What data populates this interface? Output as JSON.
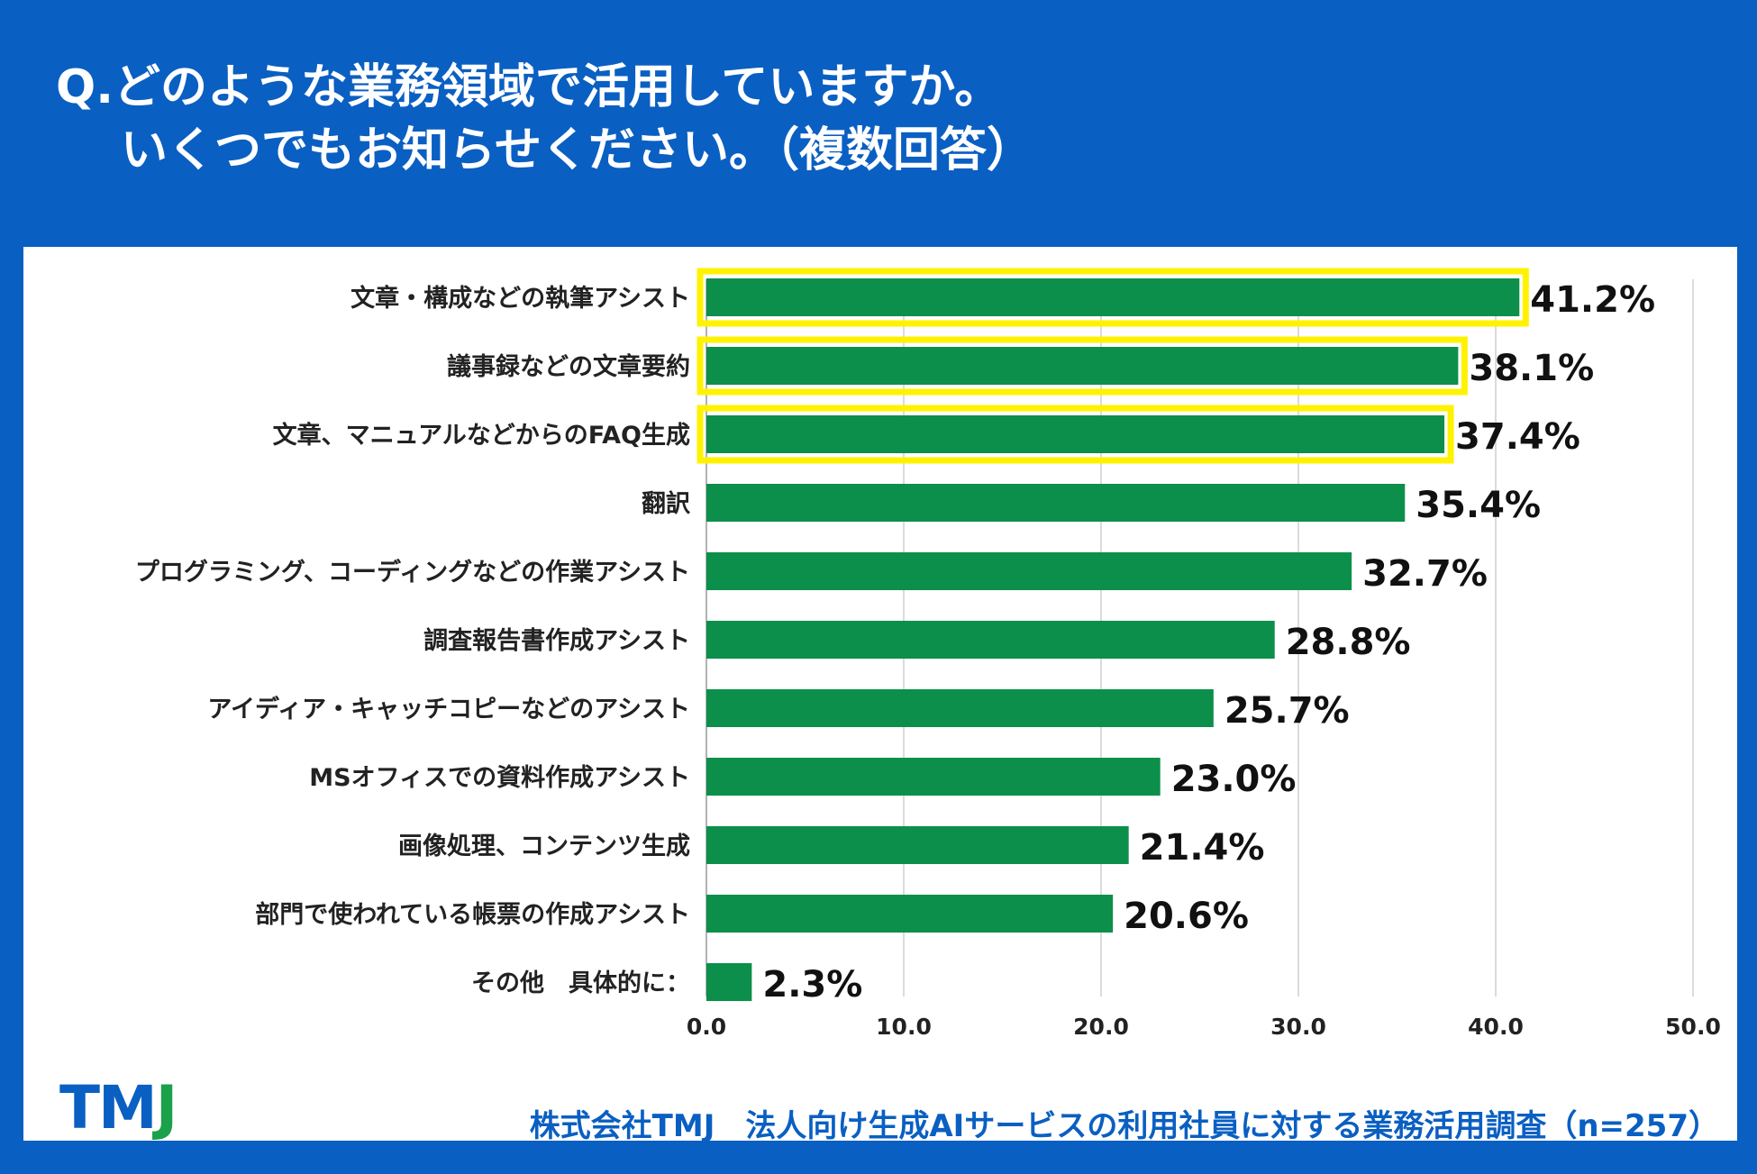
{
  "header": {
    "question_line1": "Q.どのような業務領域で活用していますか。",
    "question_line2": "いくつでもお知らせください。（複数回答）"
  },
  "colors": {
    "background": "#0a5fc2",
    "bar": "#0c8f4a",
    "highlight": "#fff200",
    "label": "#222222",
    "grid": "#cfcfcf",
    "logo_blue": "#0a5fc2",
    "logo_green": "#1aa14a"
  },
  "chart_data": {
    "type": "bar",
    "orientation": "horizontal",
    "categories": [
      "文章・構成などの執筆アシスト",
      "議事録などの文章要約",
      "文章、マニュアルなどからのFAQ生成",
      "翻訳",
      "プログラミング、コーディングなどの作業アシスト",
      "調査報告書作成アシスト",
      "アイディア・キャッチコピーなどのアシスト",
      "MSオフィスでの資料作成アシスト",
      "画像処理、コンテンツ生成",
      "部門で使われている帳票の作成アシスト",
      "その他　具体的に："
    ],
    "values": [
      41.2,
      38.1,
      37.4,
      35.4,
      32.7,
      28.8,
      25.7,
      23.0,
      21.4,
      20.6,
      2.3
    ],
    "value_labels": [
      "41.2%",
      "38.1%",
      "37.4%",
      "35.4%",
      "32.7%",
      "28.8%",
      "25.7%",
      "23.0%",
      "21.4%",
      "20.6%",
      "2.3%"
    ],
    "highlighted": [
      true,
      true,
      true,
      false,
      false,
      false,
      false,
      false,
      false,
      false,
      false
    ],
    "xlim": [
      0,
      50
    ],
    "xticks": [
      0,
      10,
      20,
      30,
      40,
      50
    ],
    "xtick_labels": [
      "0.0",
      "10.0",
      "20.0",
      "30.0",
      "40.0",
      "50.0"
    ],
    "grid": true,
    "title": "",
    "xlabel": "",
    "ylabel": ""
  },
  "footer": {
    "logo_letters": [
      "T",
      "M",
      "J"
    ],
    "source": "株式会社TMJ　法人向け生成AIサービスの利用社員に対する業務活用調査（n=257）"
  }
}
